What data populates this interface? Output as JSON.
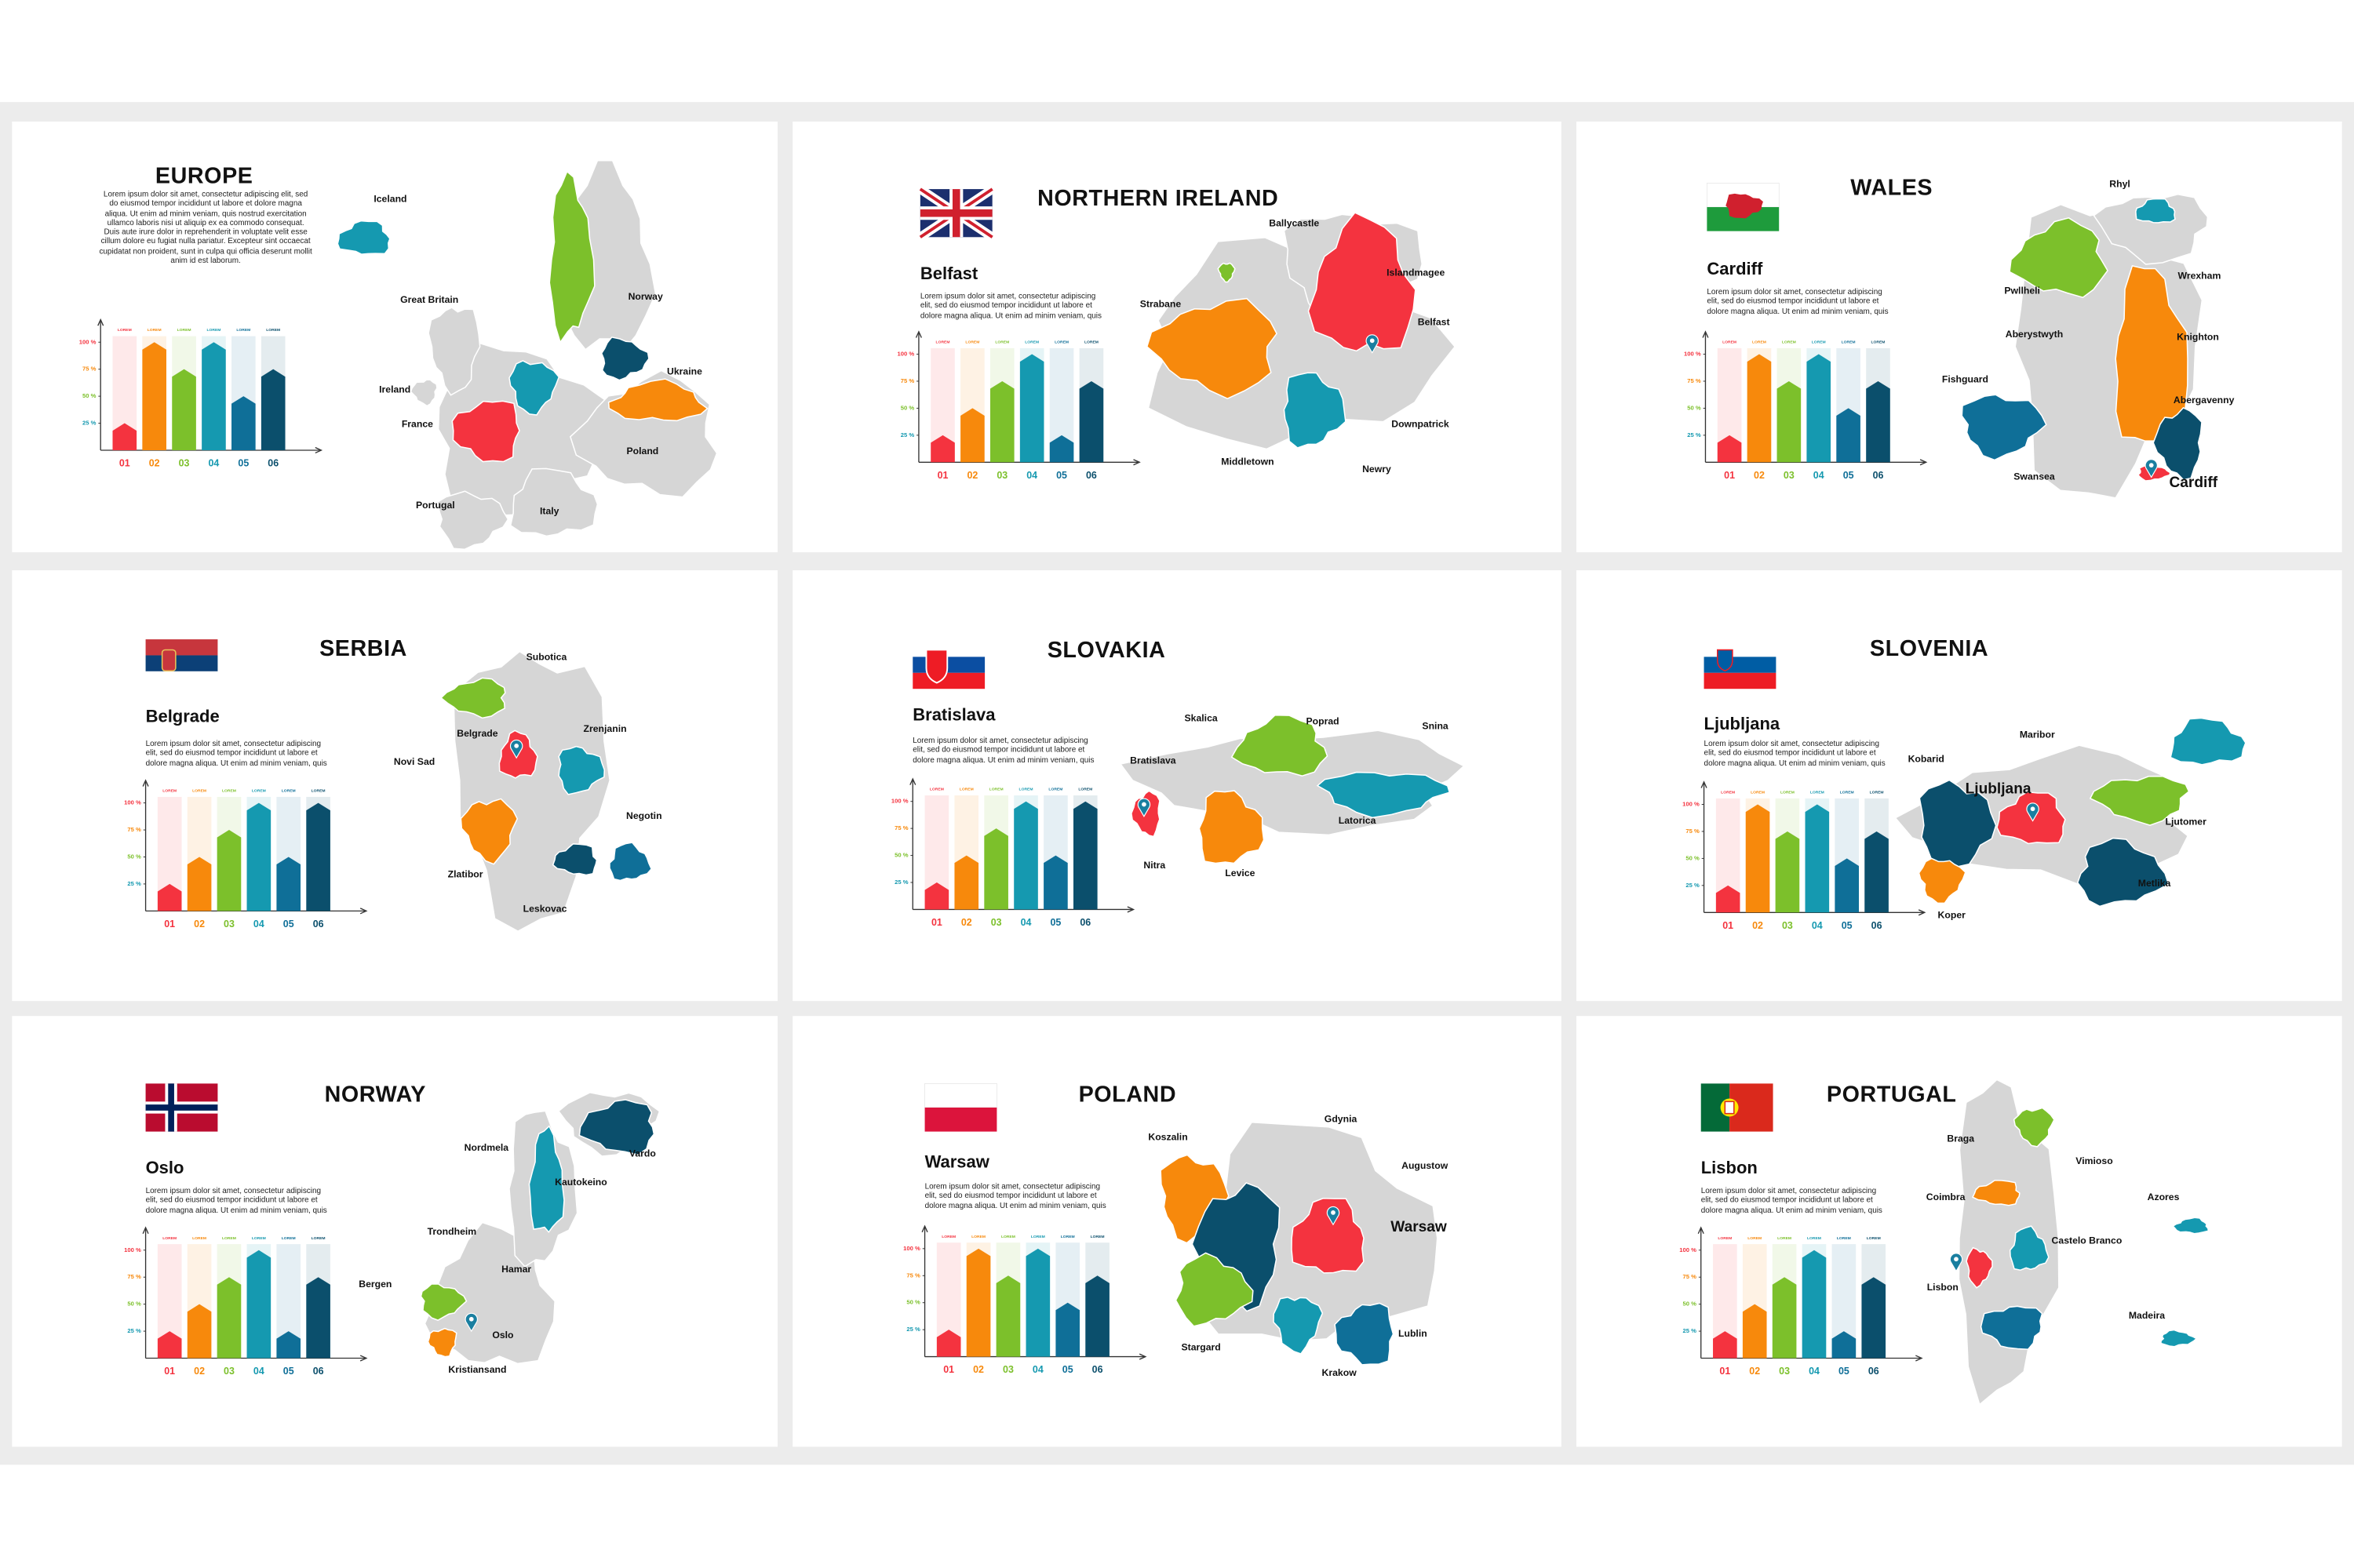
{
  "slides": [
    {
      "title": "EUROPE",
      "body": "Lorem ipsum dolor sit amet, consectetur adipiscing elit, sed do eiusmod tempor incididunt ut labore et dolore magna aliqua. Ut enim ad minim veniam, quis nostrud exercitation ullamco laboris nisi ut aliquip ex ea commodo consequat. Duis aute irure dolor in reprehenderit in voluptate velit esse cillum dolore eu fugiat nulla pariatur. Excepteur sint occaecat cupidatat non proident, sunt in culpa qui officia deserunt mollit anim id est laborum.",
      "map_labels": [
        "Iceland",
        "Great Britain",
        "Norway",
        "Ukraine",
        "Ireland",
        "France",
        "Poland",
        "Portugal",
        "Italy"
      ]
    },
    {
      "title": "NORTHERN IRELAND",
      "city": "Belfast",
      "body": "Lorem ipsum dolor sit amet, consectetur adipiscing elit, sed do eiusmod tempor incididunt ut labore et dolore magna aliqua. Ut enim ad minim veniam, quis",
      "map_labels": [
        "Ballycastle",
        "Islandmagee",
        "Strabane",
        "Belfast",
        "Downpatrick",
        "Middletown",
        "Newry"
      ]
    },
    {
      "title": "WALES",
      "city": "Cardiff",
      "body": "Lorem ipsum dolor sit amet, consectetur adipiscing elit, sed do eiusmod tempor incididunt ut labore et dolore magna aliqua. Ut enim ad minim veniam, quis",
      "map_labels": [
        "Rhyl",
        "Wrexham",
        "Pwllheli",
        "Aberystwyth",
        "Knighton",
        "Fishguard",
        "Abergavenny",
        "Swansea",
        "Cardiff"
      ]
    },
    {
      "title": "SERBIA",
      "city": "Belgrade",
      "body": "Lorem ipsum dolor sit amet, consectetur adipiscing elit, sed do eiusmod tempor incididunt ut labore et dolore magna aliqua. Ut enim ad minim veniam, quis",
      "map_labels": [
        "Subotica",
        "Belgrade",
        "Zrenjanin",
        "Novi Sad",
        "Negotin",
        "Zlatibor",
        "Leskovac"
      ]
    },
    {
      "title": "SLOVAKIA",
      "city": "Bratislava",
      "body": "Lorem ipsum dolor sit amet, consectetur adipiscing elit, sed do eiusmod tempor incididunt ut labore et dolore magna aliqua. Ut enim ad minim veniam, quis",
      "map_labels": [
        "Skalica",
        "Poprad",
        "Snina",
        "Bratislava",
        "Latorica",
        "Nitra",
        "Levice"
      ]
    },
    {
      "title": "SLOVENIA",
      "city": "Ljubljana",
      "body": "Lorem ipsum dolor sit amet, consectetur adipiscing elit, sed do eiusmod tempor incididunt ut labore et dolore magna aliqua. Ut enim ad minim veniam, quis",
      "map_labels": [
        "Maribor",
        "Kobarid",
        "Ljubljana",
        "Ljutomer",
        "Metlika",
        "Koper"
      ]
    },
    {
      "title": "NORWAY",
      "city": "Oslo",
      "body": "Lorem ipsum dolor sit amet, consectetur adipiscing elit, sed do eiusmod tempor incididunt ut labore et dolore magna aliqua. Ut enim ad minim veniam, quis",
      "map_labels": [
        "Nordmela",
        "Vardo",
        "Kautokeino",
        "Trondheim",
        "Hamar",
        "Bergen",
        "Oslo",
        "Kristiansand"
      ]
    },
    {
      "title": "POLAND",
      "city": "Warsaw",
      "body": "Lorem ipsum dolor sit amet, consectetur adipiscing elit, sed do eiusmod tempor incididunt ut labore et dolore magna aliqua. Ut enim ad minim veniam, quis",
      "map_labels": [
        "Gdynia",
        "Koszalin",
        "Augustow",
        "Warsaw",
        "Lublin",
        "Stargard",
        "Krakow"
      ]
    },
    {
      "title": "PORTUGAL",
      "city": "Lisbon",
      "body": "Lorem ipsum dolor sit amet, consectetur adipiscing elit, sed do eiusmod tempor incididunt ut labore et dolore magna aliqua. Ut enim ad minim veniam, quis",
      "map_labels": [
        "Braga",
        "Vimioso",
        "Azores",
        "Coimbra",
        "Castelo Branco",
        "Lisbon",
        "Madeira"
      ]
    }
  ],
  "chart_data": [
    {
      "type": "bar",
      "categories": [
        "01",
        "02",
        "03",
        "04",
        "05",
        "06"
      ],
      "bar_labels": [
        "LOREM",
        "LOREM",
        "LOREM",
        "LOREM",
        "LOREM",
        "LOREM"
      ],
      "values": [
        25,
        100,
        75,
        100,
        50,
        75
      ],
      "colors": [
        "#f4333f",
        "#f7890c",
        "#7cc02b",
        "#1599b0",
        "#0f6f98",
        "#0b4f6c"
      ],
      "ylim": [
        0,
        100
      ],
      "yticks": [
        {
          "value": 25,
          "label": "25 %"
        },
        {
          "value": 50,
          "label": "50 %"
        },
        {
          "value": 75,
          "label": "75 %"
        },
        {
          "value": 100,
          "label": "100 %"
        }
      ]
    },
    {
      "type": "bar",
      "categories": [
        "01",
        "02",
        "03",
        "04",
        "05",
        "06"
      ],
      "bar_labels": [
        "LOREM",
        "LOREM",
        "LOREM",
        "LOREM",
        "LOREM",
        "LOREM"
      ],
      "values": [
        25,
        50,
        75,
        100,
        25,
        75
      ],
      "colors": [
        "#f4333f",
        "#f7890c",
        "#7cc02b",
        "#1599b0",
        "#0f6f98",
        "#0b4f6c"
      ],
      "ylim": [
        0,
        100
      ],
      "yticks": [
        {
          "value": 25,
          "label": "25 %"
        },
        {
          "value": 50,
          "label": "50 %"
        },
        {
          "value": 75,
          "label": "75 %"
        },
        {
          "value": 100,
          "label": "100 %"
        }
      ]
    },
    {
      "type": "bar",
      "categories": [
        "01",
        "02",
        "03",
        "04",
        "05",
        "06"
      ],
      "bar_labels": [
        "LOREM",
        "LOREM",
        "LOREM",
        "LOREM",
        "LOREM",
        "LOREM"
      ],
      "values": [
        25,
        100,
        75,
        100,
        50,
        75
      ],
      "colors": [
        "#f4333f",
        "#f7890c",
        "#7cc02b",
        "#1599b0",
        "#0f6f98",
        "#0b4f6c"
      ],
      "ylim": [
        0,
        100
      ],
      "yticks": [
        {
          "value": 25,
          "label": "25 %"
        },
        {
          "value": 50,
          "label": "50 %"
        },
        {
          "value": 75,
          "label": "75 %"
        },
        {
          "value": 100,
          "label": "100 %"
        }
      ]
    },
    {
      "type": "bar",
      "categories": [
        "01",
        "02",
        "03",
        "04",
        "05",
        "06"
      ],
      "bar_labels": [
        "LOREM",
        "LOREM",
        "LOREM",
        "LOREM",
        "LOREM",
        "LOREM"
      ],
      "values": [
        25,
        50,
        75,
        100,
        50,
        100
      ],
      "colors": [
        "#f4333f",
        "#f7890c",
        "#7cc02b",
        "#1599b0",
        "#0f6f98",
        "#0b4f6c"
      ],
      "ylim": [
        0,
        100
      ],
      "yticks": [
        {
          "value": 25,
          "label": "25 %"
        },
        {
          "value": 50,
          "label": "50 %"
        },
        {
          "value": 75,
          "label": "75 %"
        },
        {
          "value": 100,
          "label": "100 %"
        }
      ]
    },
    {
      "type": "bar",
      "categories": [
        "01",
        "02",
        "03",
        "04",
        "05",
        "06"
      ],
      "bar_labels": [
        "LOREM",
        "LOREM",
        "LOREM",
        "LOREM",
        "LOREM",
        "LOREM"
      ],
      "values": [
        25,
        50,
        75,
        100,
        50,
        100
      ],
      "colors": [
        "#f4333f",
        "#f7890c",
        "#7cc02b",
        "#1599b0",
        "#0f6f98",
        "#0b4f6c"
      ],
      "ylim": [
        0,
        100
      ],
      "yticks": [
        {
          "value": 25,
          "label": "25 %"
        },
        {
          "value": 50,
          "label": "50 %"
        },
        {
          "value": 75,
          "label": "75 %"
        },
        {
          "value": 100,
          "label": "100 %"
        }
      ]
    },
    {
      "type": "bar",
      "categories": [
        "01",
        "02",
        "03",
        "04",
        "05",
        "06"
      ],
      "bar_labels": [
        "LOREM",
        "LOREM",
        "LOREM",
        "LOREM",
        "LOREM",
        "LOREM"
      ],
      "values": [
        25,
        100,
        75,
        100,
        50,
        75
      ],
      "colors": [
        "#f4333f",
        "#f7890c",
        "#7cc02b",
        "#1599b0",
        "#0f6f98",
        "#0b4f6c"
      ],
      "ylim": [
        0,
        100
      ],
      "yticks": [
        {
          "value": 25,
          "label": "25 %"
        },
        {
          "value": 50,
          "label": "50 %"
        },
        {
          "value": 75,
          "label": "75 %"
        },
        {
          "value": 100,
          "label": "100 %"
        }
      ]
    },
    {
      "type": "bar",
      "categories": [
        "01",
        "02",
        "03",
        "04",
        "05",
        "06"
      ],
      "bar_labels": [
        "LOREM",
        "LOREM",
        "LOREM",
        "LOREM",
        "LOREM",
        "LOREM"
      ],
      "values": [
        25,
        50,
        75,
        100,
        25,
        75
      ],
      "colors": [
        "#f4333f",
        "#f7890c",
        "#7cc02b",
        "#1599b0",
        "#0f6f98",
        "#0b4f6c"
      ],
      "ylim": [
        0,
        100
      ],
      "yticks": [
        {
          "value": 25,
          "label": "25 %"
        },
        {
          "value": 50,
          "label": "50 %"
        },
        {
          "value": 75,
          "label": "75 %"
        },
        {
          "value": 100,
          "label": "100 %"
        }
      ]
    },
    {
      "type": "bar",
      "categories": [
        "01",
        "02",
        "03",
        "04",
        "05",
        "06"
      ],
      "bar_labels": [
        "LOREM",
        "LOREM",
        "LOREM",
        "LOREM",
        "LOREM",
        "LOREM"
      ],
      "values": [
        25,
        100,
        75,
        100,
        50,
        75
      ],
      "colors": [
        "#f4333f",
        "#f7890c",
        "#7cc02b",
        "#1599b0",
        "#0f6f98",
        "#0b4f6c"
      ],
      "ylim": [
        0,
        100
      ],
      "yticks": [
        {
          "value": 25,
          "label": "25 %"
        },
        {
          "value": 50,
          "label": "50 %"
        },
        {
          "value": 75,
          "label": "75 %"
        },
        {
          "value": 100,
          "label": "100 %"
        }
      ]
    },
    {
      "type": "bar",
      "categories": [
        "01",
        "02",
        "03",
        "04",
        "05",
        "06"
      ],
      "bar_labels": [
        "LOREM",
        "LOREM",
        "LOREM",
        "LOREM",
        "LOREM",
        "LOREM"
      ],
      "values": [
        25,
        50,
        75,
        100,
        25,
        75
      ],
      "colors": [
        "#f4333f",
        "#f7890c",
        "#7cc02b",
        "#1599b0",
        "#0f6f98",
        "#0b4f6c"
      ],
      "ylim": [
        0,
        100
      ],
      "yticks": [
        {
          "value": 25,
          "label": "25 %"
        },
        {
          "value": 50,
          "label": "50 %"
        },
        {
          "value": 75,
          "label": "75 %"
        },
        {
          "value": 100,
          "label": "100 %"
        }
      ]
    }
  ]
}
